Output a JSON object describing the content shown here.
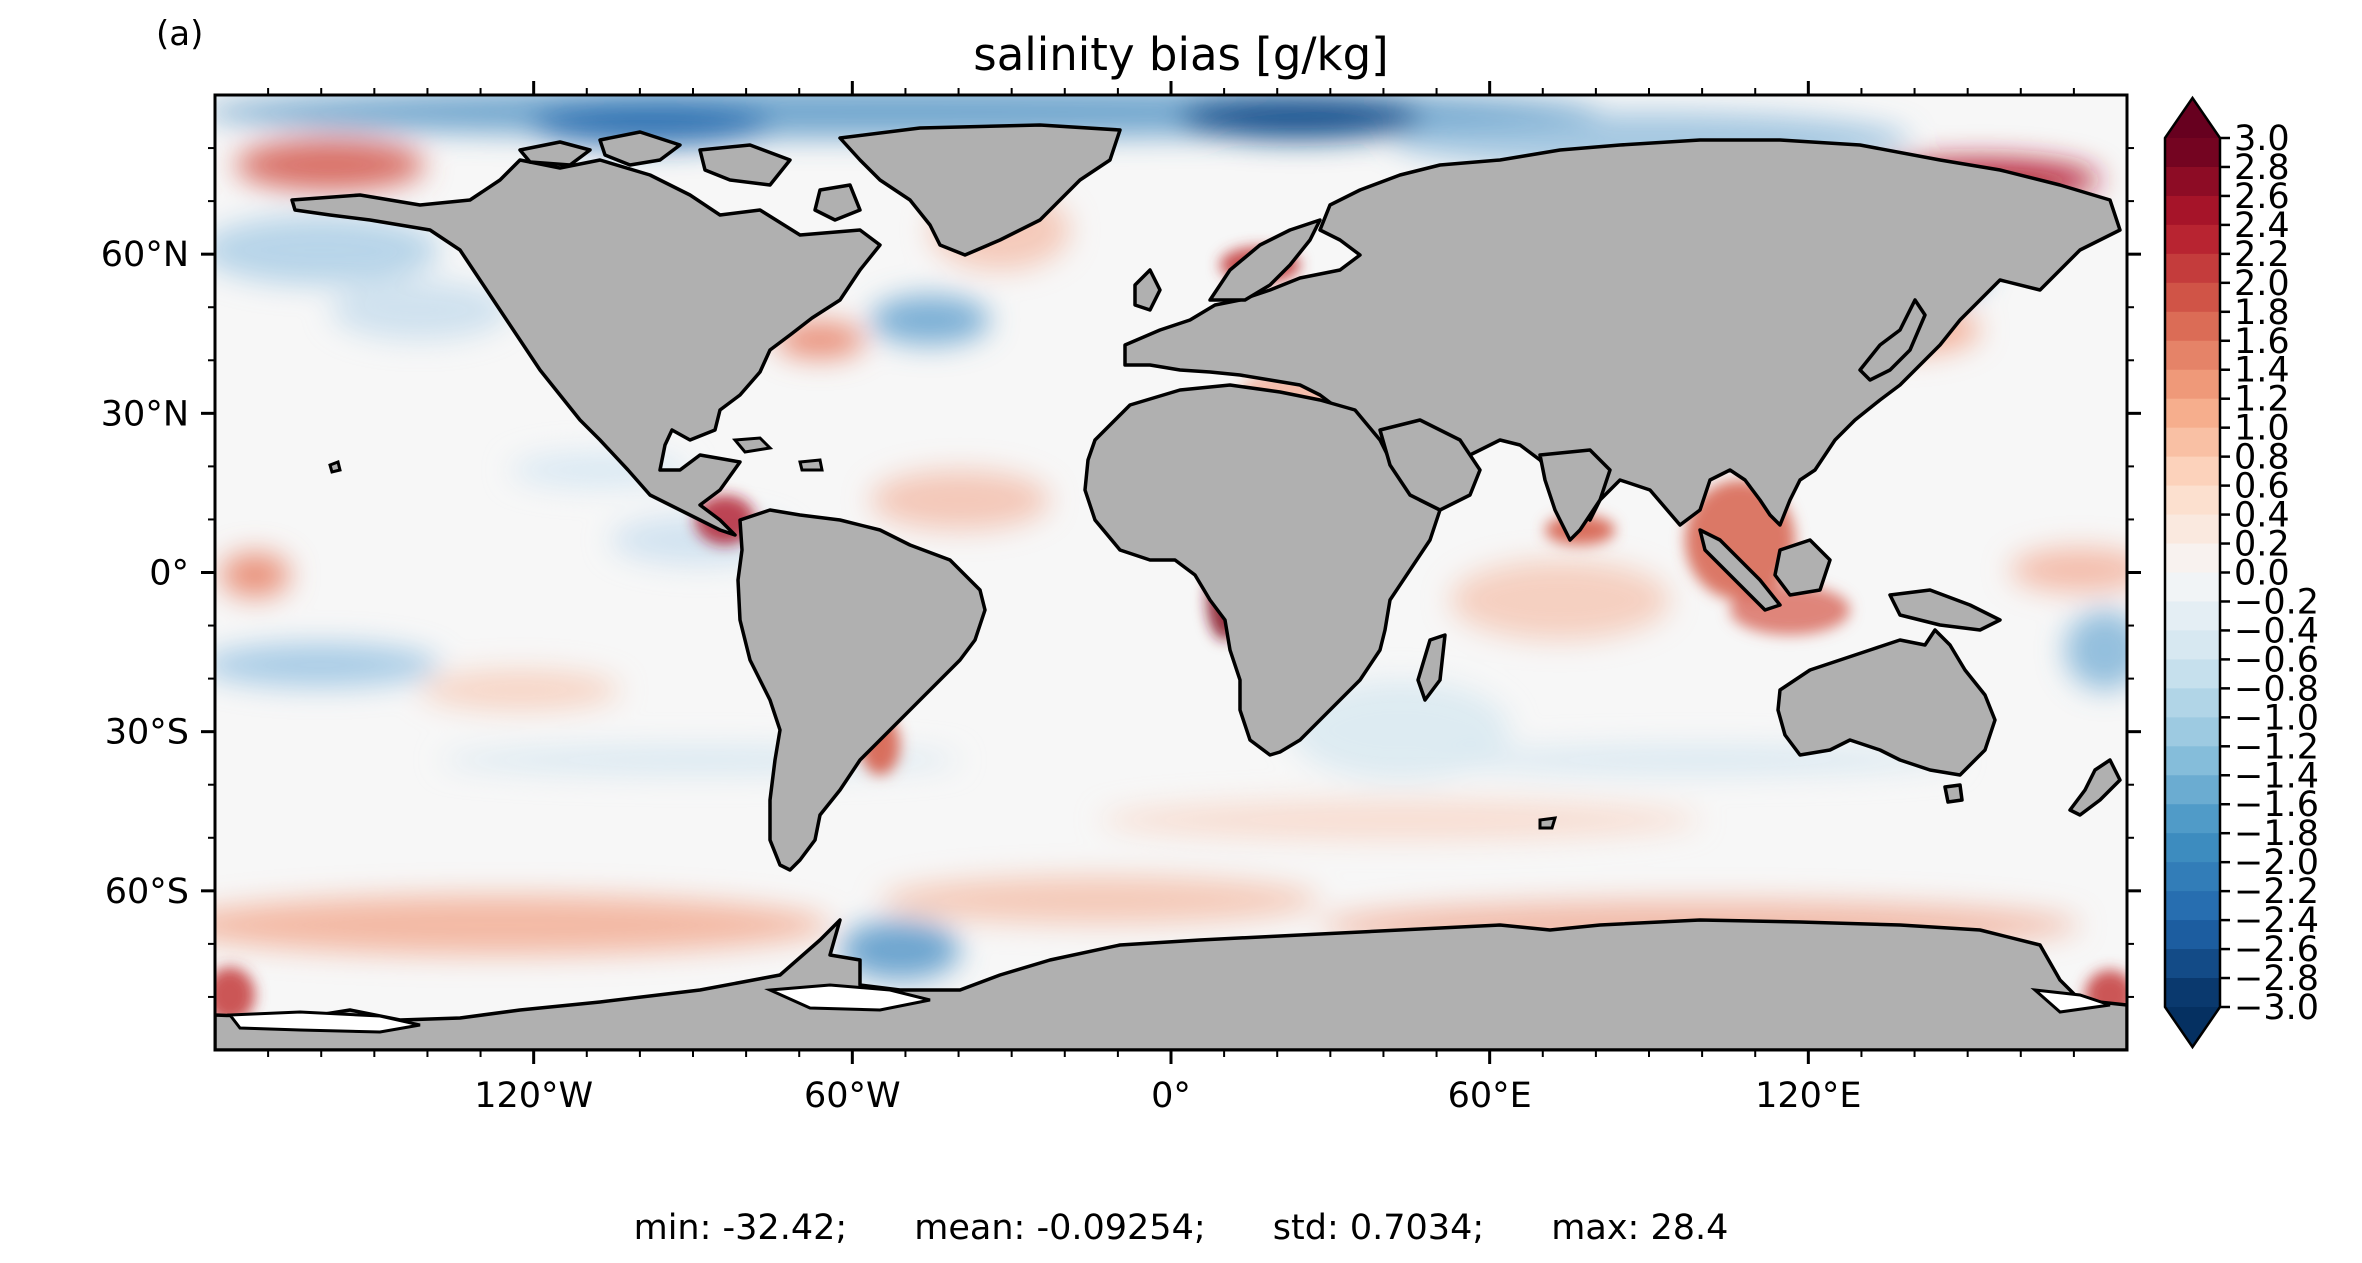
{
  "panel_label": "(a)",
  "title": "salinity bias [g/kg]",
  "colors": {
    "land": "#b0b0b0",
    "coast": "#000000",
    "ocean_neutral": "#f7f7f7",
    "cmap_low": "#053061",
    "cmap_mid": "#f7f7f7",
    "cmap_high": "#67001f"
  },
  "axes": {
    "lon_ticks": [
      "120°W",
      "60°W",
      "0°",
      "60°E",
      "120°E"
    ],
    "lat_ticks": [
      "60°N",
      "30°N",
      "0°",
      "30°S",
      "60°S"
    ],
    "lon_tick_values": [
      -120,
      -60,
      0,
      60,
      120
    ],
    "lat_tick_values": [
      60,
      30,
      0,
      -30,
      -60
    ],
    "lon_range": [
      -180,
      180
    ],
    "lat_range": [
      -90,
      90
    ]
  },
  "colorbar": {
    "min": -3.0,
    "max": 3.0,
    "step": 0.2,
    "labels": [
      "3.0",
      "2.8",
      "2.6",
      "2.4",
      "2.2",
      "2.0",
      "1.8",
      "1.6",
      "1.4",
      "1.2",
      "1.0",
      "0.8",
      "0.6",
      "0.4",
      "0.2",
      "0.0",
      "−0.2",
      "−0.4",
      "−0.6",
      "−0.8",
      "−1.0",
      "−1.2",
      "−1.4",
      "−1.6",
      "−1.8",
      "−2.0",
      "−2.2",
      "−2.4",
      "−2.6",
      "−2.8",
      "−3.0"
    ],
    "extend": "both"
  },
  "stats": {
    "min": "min: -32.42;",
    "mean": "mean: -0.09254;",
    "std": "std: 0.7034;",
    "max": "max: 28.4"
  }
}
